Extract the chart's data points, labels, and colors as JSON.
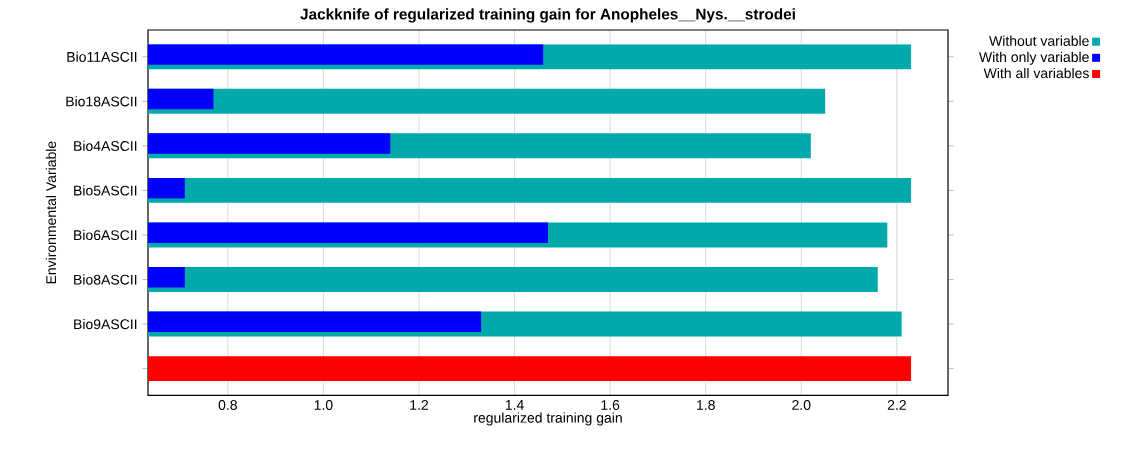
{
  "chart_data": {
    "type": "bar",
    "orientation": "horizontal",
    "title": "Jackknife of regularized training gain for Anopheles__Nys.__strodei",
    "xlabel": "regularized training gain",
    "ylabel": "Environmental Variable",
    "categories": [
      "Bio11ASCII",
      "Bio18ASCII",
      "Bio4ASCII",
      "Bio5ASCII",
      "Bio6ASCII",
      "Bio8ASCII",
      "Bio9ASCII",
      null
    ],
    "series": [
      {
        "name": "Without variable",
        "color": "#00aaaa",
        "values": [
          2.23,
          2.05,
          2.02,
          2.23,
          2.18,
          2.16,
          2.21,
          null
        ]
      },
      {
        "name": "With only variable",
        "color": "#0000ff",
        "values": [
          1.46,
          0.77,
          1.14,
          0.71,
          1.47,
          0.71,
          1.33,
          null
        ]
      },
      {
        "name": "With all variables",
        "color": "#ff0000",
        "values": [
          null,
          null,
          null,
          null,
          null,
          null,
          null,
          2.23
        ]
      }
    ],
    "xlim": [
      0.633,
      2.307
    ],
    "xticks": [
      0.8,
      {
        "value": 1.0,
        "label": "1.0"
      },
      1.2,
      1.4,
      1.6,
      1.8,
      {
        "value": 2.0,
        "label": "2.0"
      },
      2.2
    ],
    "grid": "x",
    "legend": "top right"
  }
}
